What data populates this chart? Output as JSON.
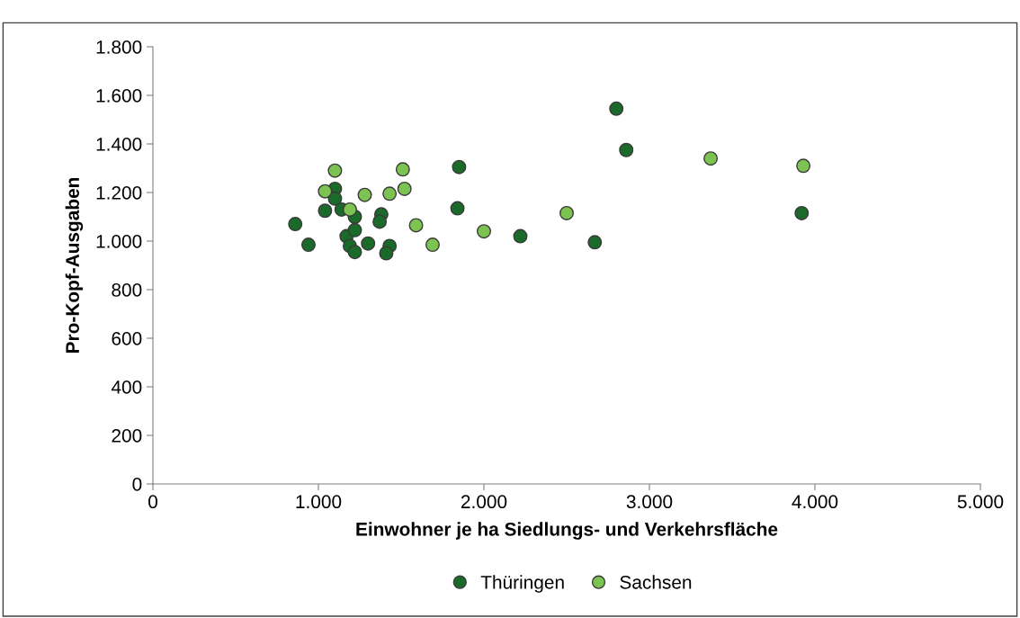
{
  "chart_data": {
    "type": "scatter",
    "xlabel": "Einwohner je ha Siedlungs- und Verkehrsfläche",
    "ylabel": "Pro-Kopf-Ausgaben",
    "xlim": [
      0,
      5000
    ],
    "xticks": [
      0,
      {
        "value": 1000,
        "label": "1.000"
      },
      {
        "value": 2000,
        "label": "2.000"
      },
      {
        "value": 3000,
        "label": "3.000"
      },
      {
        "value": 4000,
        "label": "4.000"
      },
      {
        "value": 5000,
        "label": "5.000"
      }
    ],
    "ylim": [
      0,
      1800
    ],
    "yticks": [
      0,
      200,
      400,
      600,
      800,
      {
        "value": 1000,
        "label": "1.000"
      },
      {
        "value": 1200,
        "label": "1.200"
      },
      {
        "value": 1400,
        "label": "1.400"
      },
      {
        "value": 1600,
        "label": "1.600"
      },
      {
        "value": 1800,
        "label": "1.800"
      }
    ],
    "grid": false,
    "legend": "bottom",
    "marker": "circle",
    "series": [
      {
        "name": "Thüringen",
        "color": "#1a6b2a",
        "x": [
          860,
          940,
          1040,
          1100,
          1100,
          1140,
          1220,
          1170,
          1190,
          1220,
          1220,
          1300,
          1380,
          1370,
          1430,
          1410,
          1850,
          1840,
          2220,
          2670,
          2800,
          2860,
          3920
        ],
        "values": [
          1070,
          985,
          1125,
          1215,
          1175,
          1130,
          1100,
          1020,
          980,
          1045,
          955,
          990,
          1110,
          1080,
          980,
          950,
          1305,
          1135,
          1020,
          995,
          1545,
          1375,
          1115
        ]
      },
      {
        "name": "Sachsen",
        "color": "#7dc352",
        "x": [
          1040,
          1100,
          1190,
          1280,
          1430,
          1510,
          1520,
          1590,
          1690,
          2000,
          2500,
          3370,
          3930
        ],
        "values": [
          1205,
          1290,
          1130,
          1190,
          1195,
          1295,
          1215,
          1065,
          985,
          1040,
          1115,
          1340,
          1310
        ]
      }
    ]
  }
}
